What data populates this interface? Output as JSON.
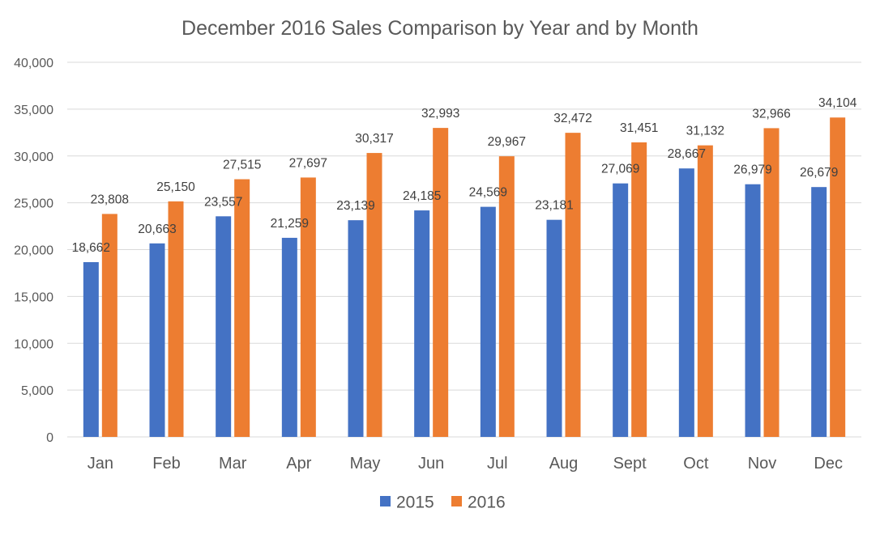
{
  "chart_data": {
    "type": "bar",
    "title": "December 2016 Sales Comparison by Year and by Month",
    "xlabel": "",
    "ylabel": "",
    "categories": [
      "Jan",
      "Feb",
      "Mar",
      "Apr",
      "May",
      "Jun",
      "Jul",
      "Aug",
      "Sept",
      "Oct",
      "Nov",
      "Dec"
    ],
    "series": [
      {
        "name": "2015",
        "color": "#4472c4",
        "values": [
          18662,
          20663,
          23557,
          21259,
          23139,
          24185,
          24569,
          23181,
          27069,
          28667,
          26979,
          26679
        ]
      },
      {
        "name": "2016",
        "color": "#ed7d31",
        "values": [
          23808,
          25150,
          27515,
          27697,
          30317,
          32993,
          29967,
          32472,
          31451,
          31132,
          32966,
          34104
        ]
      }
    ],
    "ylim": [
      0,
      40000
    ],
    "yticks": [
      0,
      5000,
      10000,
      15000,
      20000,
      25000,
      30000,
      35000,
      40000
    ],
    "ytick_labels": [
      "0",
      "5,000",
      "10,000",
      "15,000",
      "20,000",
      "25,000",
      "30,000",
      "35,000",
      "40,000"
    ],
    "data_labels": true,
    "grid": true,
    "legend": "bottom"
  }
}
